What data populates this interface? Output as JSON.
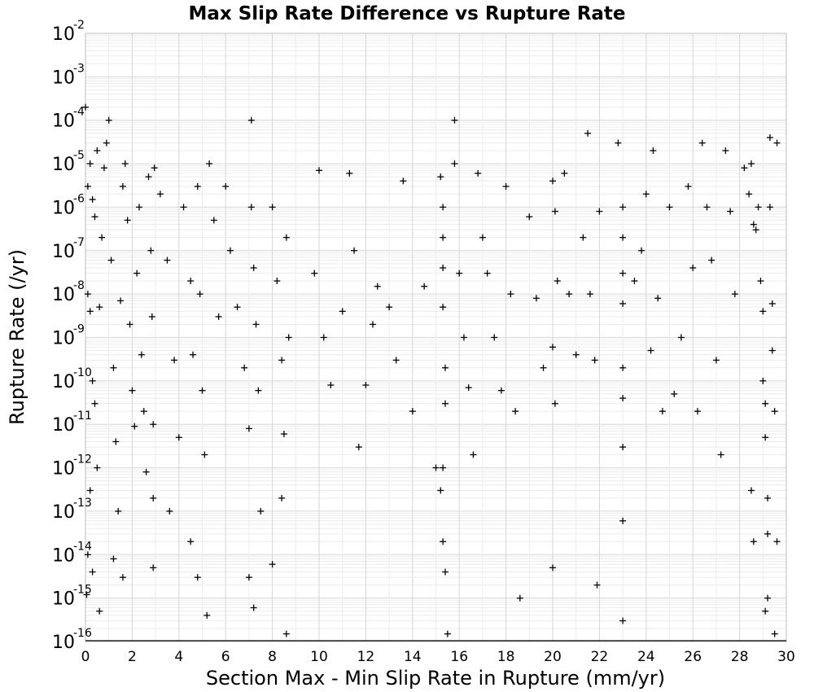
{
  "chart_data": {
    "type": "scatter",
    "title": "Max Slip Rate Difference vs Rupture Rate",
    "xlabel": "Section Max - Min Slip Rate in Rupture (mm/yr)",
    "ylabel": "Rupture Rate (/yr)",
    "xlim": [
      0,
      30
    ],
    "ylim": [
      1e-16,
      0.01
    ],
    "yscale": "log",
    "grid": true,
    "marker": "plus",
    "marker_color": "#000000",
    "x_ticks": [
      "0",
      "2",
      "4",
      "6",
      "8",
      "10",
      "12",
      "14",
      "16",
      "18",
      "20",
      "22",
      "24",
      "26",
      "28",
      "30"
    ],
    "y_ticks": [
      {
        "base": "10",
        "exp": "-2"
      },
      {
        "base": "10",
        "exp": "-3"
      },
      {
        "base": "10",
        "exp": "-4"
      },
      {
        "base": "10",
        "exp": "-5"
      },
      {
        "base": "10",
        "exp": "-6"
      },
      {
        "base": "10",
        "exp": "-7"
      },
      {
        "base": "10",
        "exp": "-8"
      },
      {
        "base": "10",
        "exp": "-9"
      },
      {
        "base": "10",
        "exp": "-10"
      },
      {
        "base": "10",
        "exp": "-11"
      },
      {
        "base": "10",
        "exp": "-12"
      },
      {
        "base": "10",
        "exp": "-13"
      },
      {
        "base": "10",
        "exp": "-14"
      },
      {
        "base": "10",
        "exp": "-15"
      },
      {
        "base": "10",
        "exp": "-16"
      }
    ],
    "series": [
      {
        "points": [
          [
            0.0,
            0.0002
          ],
          [
            0.1,
            3e-06
          ],
          [
            0.2,
            1e-05
          ],
          [
            0.3,
            1.5e-06
          ],
          [
            0.4,
            6e-07
          ],
          [
            0.5,
            2e-05
          ],
          [
            0.1,
            1e-08
          ],
          [
            0.2,
            4e-09
          ],
          [
            0.3,
            1e-10
          ],
          [
            0.4,
            3e-11
          ],
          [
            0.5,
            1e-12
          ],
          [
            0.6,
            5e-09
          ],
          [
            0.7,
            2e-07
          ],
          [
            0.8,
            8e-06
          ],
          [
            0.9,
            3e-05
          ],
          [
            1.0,
            0.0001
          ],
          [
            1.1,
            6e-08
          ],
          [
            1.2,
            2e-10
          ],
          [
            1.3,
            4e-12
          ],
          [
            1.4,
            1e-13
          ],
          [
            1.5,
            7e-09
          ],
          [
            1.6,
            3e-06
          ],
          [
            1.7,
            1e-05
          ],
          [
            1.8,
            5e-07
          ],
          [
            1.9,
            2e-09
          ],
          [
            2.0,
            6e-11
          ],
          [
            2.1,
            9e-12
          ],
          [
            2.2,
            3e-08
          ],
          [
            2.3,
            1e-06
          ],
          [
            2.4,
            4e-10
          ],
          [
            2.5,
            2e-11
          ],
          [
            2.6,
            8e-13
          ],
          [
            2.7,
            5e-06
          ],
          [
            2.8,
            1e-07
          ],
          [
            2.85,
            3e-09
          ],
          [
            2.9,
            1e-11
          ],
          [
            2.9,
            2e-13
          ],
          [
            2.9,
            5e-15
          ],
          [
            2.95,
            8e-06
          ],
          [
            0.2,
            3e-13
          ],
          [
            0.1,
            1e-14
          ],
          [
            0.3,
            4e-15
          ],
          [
            0.05,
            1.2e-15
          ],
          [
            0.6,
            5e-16
          ],
          [
            1.2,
            8e-15
          ],
          [
            1.6,
            3e-15
          ],
          [
            3.2,
            2e-06
          ],
          [
            3.5,
            6e-08
          ],
          [
            3.8,
            3e-10
          ],
          [
            4.0,
            5e-12
          ],
          [
            4.2,
            1e-06
          ],
          [
            4.5,
            2e-08
          ],
          [
            4.6,
            4e-10
          ],
          [
            4.8,
            3e-06
          ],
          [
            4.9,
            1e-08
          ],
          [
            5.0,
            6e-11
          ],
          [
            5.1,
            2e-12
          ],
          [
            5.3,
            1e-05
          ],
          [
            5.5,
            5e-07
          ],
          [
            5.7,
            3e-09
          ],
          [
            4.5,
            2e-14
          ],
          [
            4.8,
            3e-15
          ],
          [
            5.2,
            4e-16
          ],
          [
            3.6,
            1e-13
          ],
          [
            6.0,
            3e-06
          ],
          [
            6.2,
            1e-07
          ],
          [
            6.5,
            5e-09
          ],
          [
            6.8,
            2e-10
          ],
          [
            7.0,
            8e-12
          ],
          [
            7.1,
            1e-06
          ],
          [
            7.2,
            4e-08
          ],
          [
            7.3,
            2e-09
          ],
          [
            7.4,
            6e-11
          ],
          [
            7.1,
            0.0001
          ],
          [
            7.5,
            1e-13
          ],
          [
            7.0,
            3e-15
          ],
          [
            7.2,
            6e-16
          ],
          [
            8.0,
            1e-06
          ],
          [
            8.2,
            2e-08
          ],
          [
            8.4,
            3e-10
          ],
          [
            8.5,
            6e-12
          ],
          [
            8.6,
            2e-07
          ],
          [
            8.7,
            1e-09
          ],
          [
            8.6,
            1.5e-16
          ],
          [
            8.0,
            6e-15
          ],
          [
            8.4,
            2e-13
          ],
          [
            10.0,
            7e-06
          ],
          [
            9.8,
            3e-08
          ],
          [
            10.2,
            1e-09
          ],
          [
            10.5,
            8e-11
          ],
          [
            11.0,
            4e-09
          ],
          [
            11.3,
            6e-06
          ],
          [
            11.5,
            1e-07
          ],
          [
            11.7,
            3e-12
          ],
          [
            12.0,
            8e-11
          ],
          [
            12.3,
            2e-09
          ],
          [
            12.5,
            1.5e-08
          ],
          [
            13.0,
            5e-09
          ],
          [
            13.3,
            3e-10
          ],
          [
            13.6,
            4e-06
          ],
          [
            14.0,
            2e-11
          ],
          [
            14.5,
            1.5e-08
          ],
          [
            15.0,
            1e-12
          ],
          [
            15.2,
            5e-06
          ],
          [
            15.3,
            1e-06
          ],
          [
            15.3,
            2e-07
          ],
          [
            15.3,
            4e-08
          ],
          [
            15.3,
            5e-09
          ],
          [
            15.4,
            2e-10
          ],
          [
            15.4,
            3e-11
          ],
          [
            15.3,
            1e-12
          ],
          [
            15.2,
            3e-13
          ],
          [
            15.3,
            2e-14
          ],
          [
            15.4,
            4e-15
          ],
          [
            15.5,
            1.5e-16
          ],
          [
            15.8,
            0.0001
          ],
          [
            15.8,
            1e-05
          ],
          [
            16.0,
            3e-08
          ],
          [
            16.2,
            1e-09
          ],
          [
            16.4,
            7e-11
          ],
          [
            16.6,
            2e-12
          ],
          [
            16.8,
            6e-06
          ],
          [
            17.0,
            2e-07
          ],
          [
            17.2,
            3e-08
          ],
          [
            17.5,
            1e-09
          ],
          [
            17.8,
            6e-11
          ],
          [
            18.0,
            3e-06
          ],
          [
            18.2,
            1e-08
          ],
          [
            18.4,
            2e-11
          ],
          [
            18.6,
            1e-15
          ],
          [
            19.0,
            6e-07
          ],
          [
            19.3,
            8e-09
          ],
          [
            19.6,
            2e-10
          ],
          [
            20.0,
            4e-06
          ],
          [
            20.1,
            8e-07
          ],
          [
            20.2,
            2e-08
          ],
          [
            20.0,
            6e-10
          ],
          [
            20.1,
            3e-11
          ],
          [
            20.0,
            5e-15
          ],
          [
            20.5,
            6e-06
          ],
          [
            20.7,
            1e-08
          ],
          [
            21.0,
            4e-10
          ],
          [
            21.3,
            2e-07
          ],
          [
            21.5,
            5e-05
          ],
          [
            21.6,
            1e-08
          ],
          [
            21.8,
            3e-10
          ],
          [
            21.9,
            2e-15
          ],
          [
            22.0,
            8e-07
          ],
          [
            22.8,
            3e-05
          ],
          [
            23.0,
            1e-06
          ],
          [
            23.0,
            2e-07
          ],
          [
            23.0,
            3e-08
          ],
          [
            23.0,
            6e-09
          ],
          [
            23.0,
            2e-10
          ],
          [
            23.0,
            4e-11
          ],
          [
            23.0,
            3e-12
          ],
          [
            23.0,
            3e-16
          ],
          [
            23.0,
            6e-14
          ],
          [
            23.5,
            2e-08
          ],
          [
            23.8,
            1e-07
          ],
          [
            24.0,
            2e-06
          ],
          [
            24.2,
            5e-10
          ],
          [
            24.3,
            2e-05
          ],
          [
            24.5,
            8e-09
          ],
          [
            24.7,
            2e-11
          ],
          [
            25.0,
            1e-06
          ],
          [
            25.2,
            5e-11
          ],
          [
            25.5,
            1e-09
          ],
          [
            25.8,
            3e-06
          ],
          [
            26.0,
            4e-08
          ],
          [
            26.2,
            2e-11
          ],
          [
            26.4,
            3e-05
          ],
          [
            26.6,
            1e-06
          ],
          [
            26.8,
            6e-08
          ],
          [
            27.0,
            3e-10
          ],
          [
            27.2,
            2e-12
          ],
          [
            27.4,
            2e-05
          ],
          [
            27.6,
            8e-07
          ],
          [
            27.8,
            1e-08
          ],
          [
            28.2,
            8e-06
          ],
          [
            28.4,
            2e-06
          ],
          [
            28.5,
            1e-05
          ],
          [
            28.6,
            4e-07
          ],
          [
            28.7,
            3e-07
          ],
          [
            28.8,
            1e-06
          ],
          [
            28.9,
            2e-08
          ],
          [
            29.0,
            4e-09
          ],
          [
            29.0,
            1e-10
          ],
          [
            29.1,
            3e-11
          ],
          [
            29.1,
            5e-12
          ],
          [
            29.2,
            2e-13
          ],
          [
            29.2,
            3e-14
          ],
          [
            29.2,
            1e-15
          ],
          [
            29.3,
            4e-05
          ],
          [
            29.3,
            1e-06
          ],
          [
            29.4,
            6e-09
          ],
          [
            29.4,
            5e-10
          ],
          [
            29.5,
            2e-11
          ],
          [
            29.5,
            1.5e-16
          ],
          [
            29.6,
            3e-05
          ],
          [
            29.6,
            2e-14
          ],
          [
            28.5,
            3e-13
          ],
          [
            28.6,
            2e-14
          ],
          [
            29.1,
            5e-16
          ]
        ]
      }
    ]
  }
}
